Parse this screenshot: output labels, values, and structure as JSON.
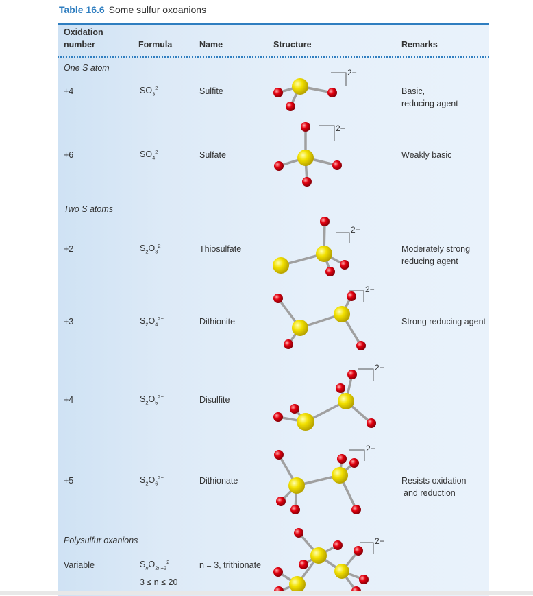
{
  "title": {
    "number": "Table 16.6",
    "text": "Some sulfur oxoanions"
  },
  "headers": {
    "oxidation_line1": "Oxidation",
    "oxidation_line2": "number",
    "formula": "Formula",
    "name": "Name",
    "structure": "Structure",
    "remarks": "Remarks"
  },
  "sections": {
    "one": "One S atom",
    "two": "Two S atoms",
    "poly": "Polysulfur oxanions"
  },
  "charge": "2−",
  "rows": [
    {
      "ox": "+4",
      "f_base": "SO",
      "f_sub": "3",
      "f_sup": "2−",
      "name": "Sulfite",
      "remark1": "Basic,",
      "remark2": "reducing agent"
    },
    {
      "ox": "+6",
      "f_base": "SO",
      "f_sub": "4",
      "f_sup": "2−",
      "name": "Sulfate",
      "remark1": "Weakly basic",
      "remark2": ""
    },
    {
      "ox": "+2",
      "f_base": "S",
      "f_s": "2",
      "f_o": "O",
      "f_sub": "3",
      "f_sup": "2−",
      "name": "Thiosulfate",
      "remark1": "Moderately strong",
      "remark2": "reducing agent"
    },
    {
      "ox": "+3",
      "f_base": "S",
      "f_s": "2",
      "f_o": "O",
      "f_sub": "4",
      "f_sup": "2−",
      "name": "Dithionite",
      "remark1": "Strong reducing agent",
      "remark2": ""
    },
    {
      "ox": "+4",
      "f_base": "S",
      "f_s": "2",
      "f_o": "O",
      "f_sub": "5",
      "f_sup": "2−",
      "name": "Disulfite",
      "remark1": "",
      "remark2": ""
    },
    {
      "ox": "+5",
      "f_base": "S",
      "f_s": "2",
      "f_o": "O",
      "f_sub": "6",
      "f_sup": "2−",
      "name": "Dithionate",
      "remark1": "Resists oxidation",
      "remark2": "and reduction"
    }
  ],
  "poly": {
    "ox": "Variable",
    "f_base": "S",
    "f_sub": "n",
    "f_o": "O",
    "f_osub": "2n+2",
    "f_sup": "2−",
    "range": "3 ≤ n ≤ 20",
    "name": "n = 3, trithionate"
  },
  "colors": {
    "accent": "#2f7ec0",
    "sulfur": "#f2e000",
    "oxygen": "#e3000f",
    "bond": "#9a9a9a"
  }
}
